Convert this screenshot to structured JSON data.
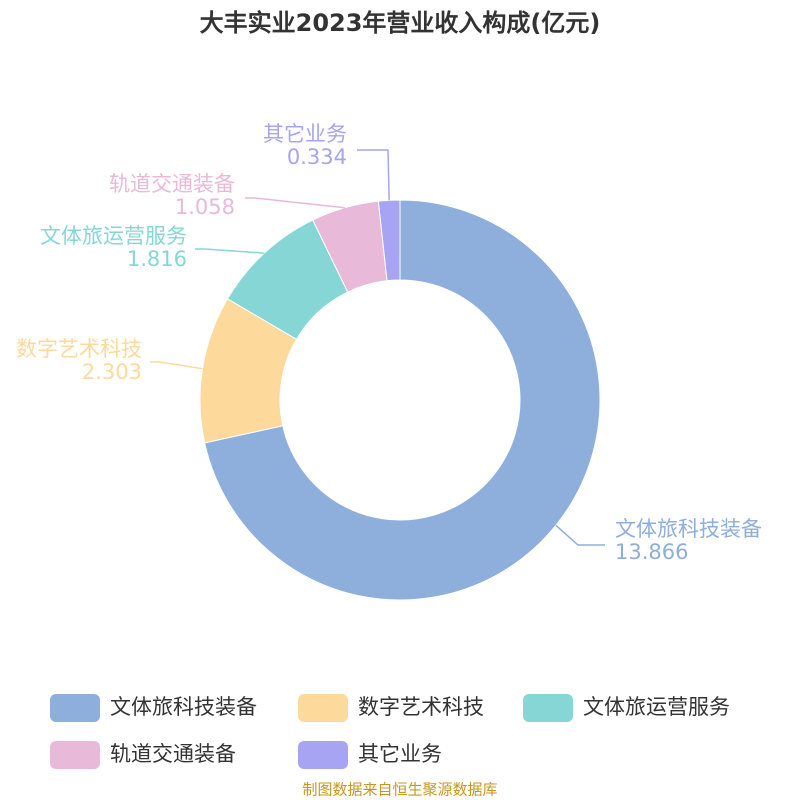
{
  "chart_data": {
    "type": "pie",
    "title": "大丰实业2023年营业收入构成(亿元)",
    "categories": [
      "文体旅科技装备",
      "数字艺术科技",
      "文体旅运营服务",
      "轨道交通装备",
      "其它业务"
    ],
    "values": [
      13.866,
      2.303,
      1.816,
      1.058,
      0.334
    ],
    "colors": [
      "#8eaedb",
      "#fdd99b",
      "#86d6d6",
      "#e8b9d9",
      "#a6a4f3"
    ],
    "legend": "bottom",
    "source": "制图数据来自恒生聚源数据库"
  }
}
